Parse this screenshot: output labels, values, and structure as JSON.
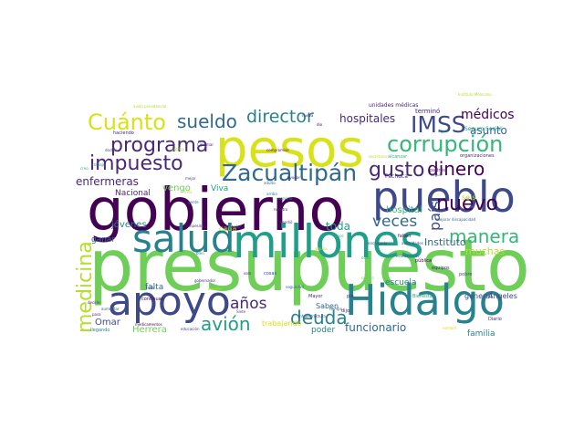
{
  "palette": {
    "dark_purple": "#440154",
    "purple": "#482878",
    "indigo": "#3e4989",
    "blue": "#31688e",
    "teal_blue": "#26828e",
    "teal": "#1f9e89",
    "green": "#35b779",
    "light_green": "#6ece58",
    "yellow_green": "#b5de2b",
    "yellow": "#d8e219"
  },
  "words": [
    {
      "text": "presupuesto",
      "color": "#6ece58"
    },
    {
      "text": "gobierno",
      "color": "#440154"
    },
    {
      "text": "pesos",
      "color": "#d8e219"
    },
    {
      "text": "pueblo",
      "color": "#3e4989"
    },
    {
      "text": "millones",
      "color": "#1f9e89"
    },
    {
      "text": "salud",
      "color": "#26828e"
    },
    {
      "text": "Hidalgo",
      "color": "#26828e"
    },
    {
      "text": "apoyo",
      "color": "#3e4989"
    },
    {
      "text": "Zacualtipán",
      "color": "#31688e"
    },
    {
      "text": "corrupción",
      "color": "#35b779"
    },
    {
      "text": "Cuánto",
      "color": "#d8e219"
    },
    {
      "text": "IMSS",
      "color": "#3e4989"
    },
    {
      "text": "programa",
      "color": "#482878"
    },
    {
      "text": "sueldo",
      "color": "#31688e"
    },
    {
      "text": "director",
      "color": "#26828e"
    },
    {
      "text": "impuesto",
      "color": "#482878"
    },
    {
      "text": "nuevo",
      "color": "#440154"
    },
    {
      "text": "deuda",
      "color": "#26828e"
    },
    {
      "text": "manera",
      "color": "#35b779"
    },
    {
      "text": "dinero",
      "color": "#440154"
    },
    {
      "text": "gusto",
      "color": "#482878"
    },
    {
      "text": "medicina",
      "color": "#b5de2b"
    },
    {
      "text": "avión",
      "color": "#1f9e89"
    },
    {
      "text": "años",
      "color": "#482878"
    },
    {
      "text": "veces",
      "color": "#31688e"
    },
    {
      "text": "médicos",
      "color": "#440154"
    },
    {
      "text": "hospitales",
      "color": "#482878"
    },
    {
      "text": "enfermeras",
      "color": "#482878"
    },
    {
      "text": "país",
      "color": "#3e4989"
    },
    {
      "text": "funcionario",
      "color": "#31688e"
    },
    {
      "text": "asunto",
      "color": "#31688e"
    },
    {
      "text": "toda",
      "color": "#1f9e89"
    },
    {
      "text": "Instituto",
      "color": "#31688e"
    },
    {
      "text": "muchas",
      "color": "#b5de2b"
    },
    {
      "text": "hospital",
      "color": "#35b779"
    },
    {
      "text": "jóvenes",
      "color": "#26828e"
    },
    {
      "text": "familia",
      "color": "#26828e"
    },
    {
      "text": "Omar",
      "color": "#3e4989"
    },
    {
      "text": "Herrera",
      "color": "#6ece58"
    },
    {
      "text": "falta",
      "color": "#31688e"
    },
    {
      "text": "escuela",
      "color": "#26828e"
    },
    {
      "text": "trabajando",
      "color": "#d8e219"
    },
    {
      "text": "poder",
      "color": "#26828e"
    },
    {
      "text": "vengo",
      "color": "#6ece58"
    },
    {
      "text": "Nacional",
      "color": "#482878"
    },
    {
      "text": "ganar",
      "color": "#31688e"
    },
    {
      "text": "general",
      "color": "#3e4989"
    },
    {
      "text": "Ángeles",
      "color": "#3e4989"
    },
    {
      "text": "seis",
      "color": "#b5de2b"
    },
    {
      "text": "Viva",
      "color": "#1f9e89"
    },
    {
      "text": "cada",
      "color": "#b5de2b"
    },
    {
      "text": "Saben",
      "color": "#31688e"
    },
    {
      "text": "Diario",
      "color": "#482878"
    },
    {
      "text": "unidades médicas",
      "color": "#482878"
    },
    {
      "text": "Instituto Mexicano",
      "color": "#b5de2b"
    },
    {
      "text": "Seguro Social",
      "color": "#1f9e89"
    },
    {
      "text": "organizaciones",
      "color": "#482878"
    },
    {
      "text": "terminó",
      "color": "#482878"
    },
    {
      "text": "secretario",
      "color": "#b5de2b"
    },
    {
      "text": "alcanzar",
      "color": "#35b779"
    },
    {
      "text": "Pachuca",
      "color": "#482878"
    },
    {
      "text": "padres",
      "color": "#482878"
    },
    {
      "text": "seguir",
      "color": "#3e4989"
    },
    {
      "text": "mejorar discapacidad",
      "color": "#31688e"
    },
    {
      "text": "autoridades",
      "color": "#3e4989"
    },
    {
      "text": "economistas",
      "color": "#31688e"
    },
    {
      "text": "falten",
      "color": "#440154"
    },
    {
      "text": "pública",
      "color": "#440154"
    },
    {
      "text": "equipos",
      "color": "#482878"
    },
    {
      "text": "pobre",
      "color": "#3e4989"
    },
    {
      "text": "Bienestar",
      "color": "#1f9e89"
    },
    {
      "text": "infraestructura",
      "color": "#3e4989"
    },
    {
      "text": "seguridad",
      "color": "#31688e"
    },
    {
      "text": "Mayor",
      "color": "#482878"
    },
    {
      "text": "tiempo",
      "color": "#31688e"
    },
    {
      "text": "dijo",
      "color": "#482878"
    },
    {
      "text": "nombre",
      "color": "#d8e219"
    },
    {
      "text": "avión presidencial",
      "color": "#b5de2b"
    },
    {
      "text": "haciendo",
      "color": "#482878"
    },
    {
      "text": "doctor",
      "color": "#3e4989"
    },
    {
      "text": "trabajo",
      "color": "#26828e"
    },
    {
      "text": "público",
      "color": "#b5de2b"
    },
    {
      "text": "compromiso",
      "color": "#440154"
    },
    {
      "text": "mejor",
      "color": "#3e4989"
    },
    {
      "text": "creo",
      "color": "#35b779"
    },
    {
      "text": "Villa",
      "color": "#b5de2b"
    },
    {
      "text": "gente",
      "color": "#31688e"
    },
    {
      "text": "campesino",
      "color": "#482878"
    },
    {
      "text": "trabajar",
      "color": "#3e4989"
    },
    {
      "text": "bien",
      "color": "#26828e"
    },
    {
      "text": "continuar",
      "color": "#440154"
    },
    {
      "text": "fallar",
      "color": "#3e4989"
    },
    {
      "text": "decirle",
      "color": "#482878"
    },
    {
      "text": "aumentar",
      "color": "#31688e"
    },
    {
      "text": "pasa",
      "color": "#482878"
    },
    {
      "text": "llegando",
      "color": "#26828e"
    },
    {
      "text": "medicamentos",
      "color": "#440154"
    },
    {
      "text": "educación",
      "color": "#3e4989"
    },
    {
      "text": "gobernador",
      "color": "#482878"
    },
    {
      "text": "cosas",
      "color": "#3e4989"
    },
    {
      "text": "vendió",
      "color": "#3e4989"
    },
    {
      "text": "servicio",
      "color": "#26828e"
    },
    {
      "text": "nuestro",
      "color": "#482878"
    },
    {
      "text": "encargado",
      "color": "#3e4989"
    },
    {
      "text": "hace",
      "color": "#35b779"
    },
    {
      "text": "adulto",
      "color": "#31688e"
    },
    {
      "text": "ayudar",
      "color": "#482878"
    },
    {
      "text": "arriba",
      "color": "#26828e"
    },
    {
      "text": "Ciplamar",
      "color": "#482878"
    },
    {
      "text": "nueva",
      "color": "#482878"
    },
    {
      "text": "dio",
      "color": "#440154"
    },
    {
      "text": "agua",
      "color": "#26828e"
    },
    {
      "text": "ocho",
      "color": "#35b779"
    },
    {
      "text": "pie",
      "color": "#482878"
    },
    {
      "text": "Siete",
      "color": "#3e4989"
    },
    {
      "text": "alguna",
      "color": "#b5de2b"
    },
    {
      "text": "solo",
      "color": "#482878"
    },
    {
      "text": "atender",
      "color": "#b5de2b"
    },
    {
      "text": "cuanto",
      "color": "#6ece58"
    }
  ]
}
